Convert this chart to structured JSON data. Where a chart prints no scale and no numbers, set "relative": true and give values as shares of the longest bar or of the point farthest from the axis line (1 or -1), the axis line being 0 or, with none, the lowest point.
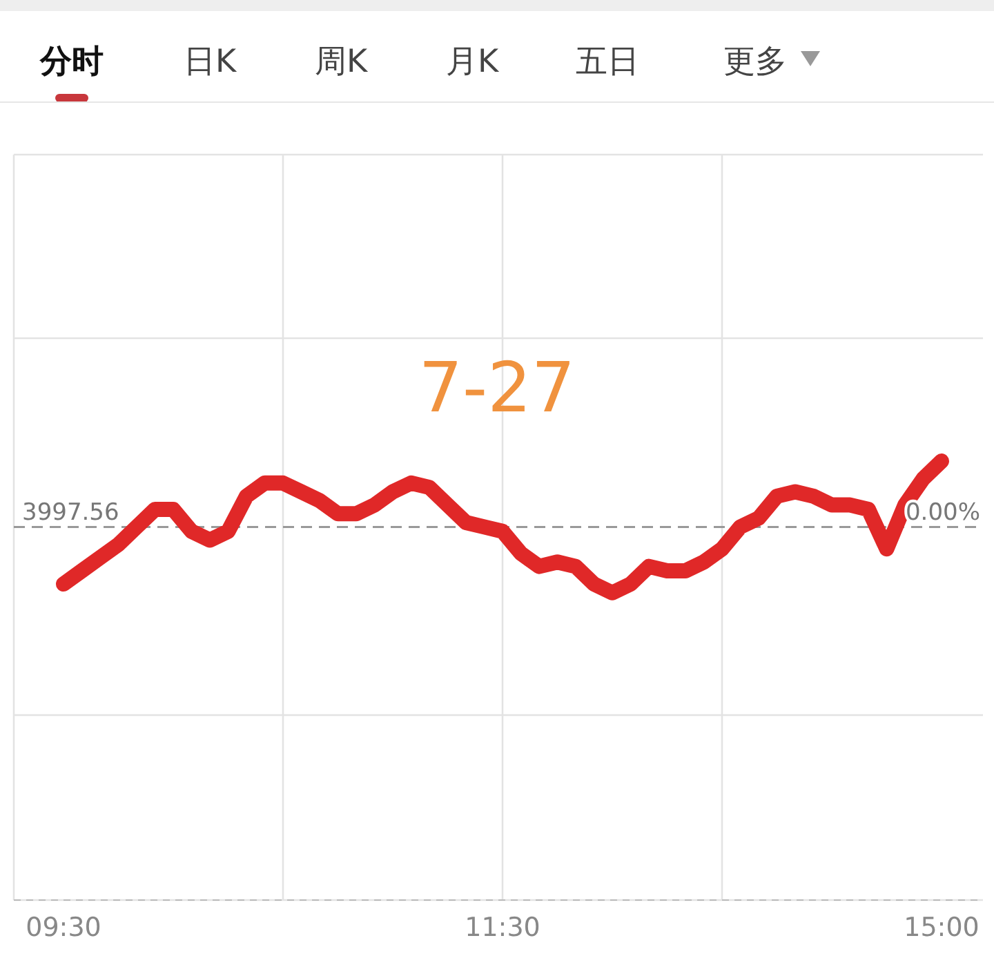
{
  "chart_data": {
    "type": "line",
    "relative": true,
    "title": "7-27",
    "annotations": [
      "分时",
      "日K",
      "周K",
      "月K",
      "五日",
      "更多",
      "3997.56",
      "0.00%"
    ],
    "categories": [
      "09:30",
      null,
      null,
      null,
      null,
      null,
      null,
      null,
      null,
      null,
      null,
      null,
      null,
      null,
      null,
      null,
      null,
      null,
      null,
      null,
      null,
      null,
      null,
      null,
      "11:30",
      null,
      null,
      null,
      null,
      null,
      null,
      null,
      null,
      null,
      null,
      null,
      null,
      null,
      null,
      null,
      null,
      null,
      null,
      null,
      null,
      null,
      null,
      null,
      "15:00"
    ],
    "series": [
      {
        "color": "#e02828",
        "values": [
          0.72,
          0.75,
          0.78,
          0.81,
          0.85,
          0.89,
          0.89,
          0.84,
          0.82,
          0.84,
          0.92,
          0.95,
          0.95,
          0.93,
          0.91,
          0.88,
          0.88,
          0.9,
          0.93,
          0.95,
          0.94,
          0.9,
          0.86,
          0.85,
          0.84,
          0.79,
          0.76,
          0.77,
          0.76,
          0.72,
          0.7,
          0.72,
          0.76,
          0.75,
          0.75,
          0.77,
          0.8,
          0.85,
          0.87,
          0.92,
          0.93,
          0.92,
          0.9,
          0.9,
          0.89,
          0.8,
          0.9,
          0.96,
          1
        ]
      }
    ],
    "ref_lines": [
      {
        "axis": "y",
        "value": 0.85,
        "color": "#999999",
        "line_style": "dashed"
      }
    ],
    "grid": true,
    "line_style": "solid"
  }
}
